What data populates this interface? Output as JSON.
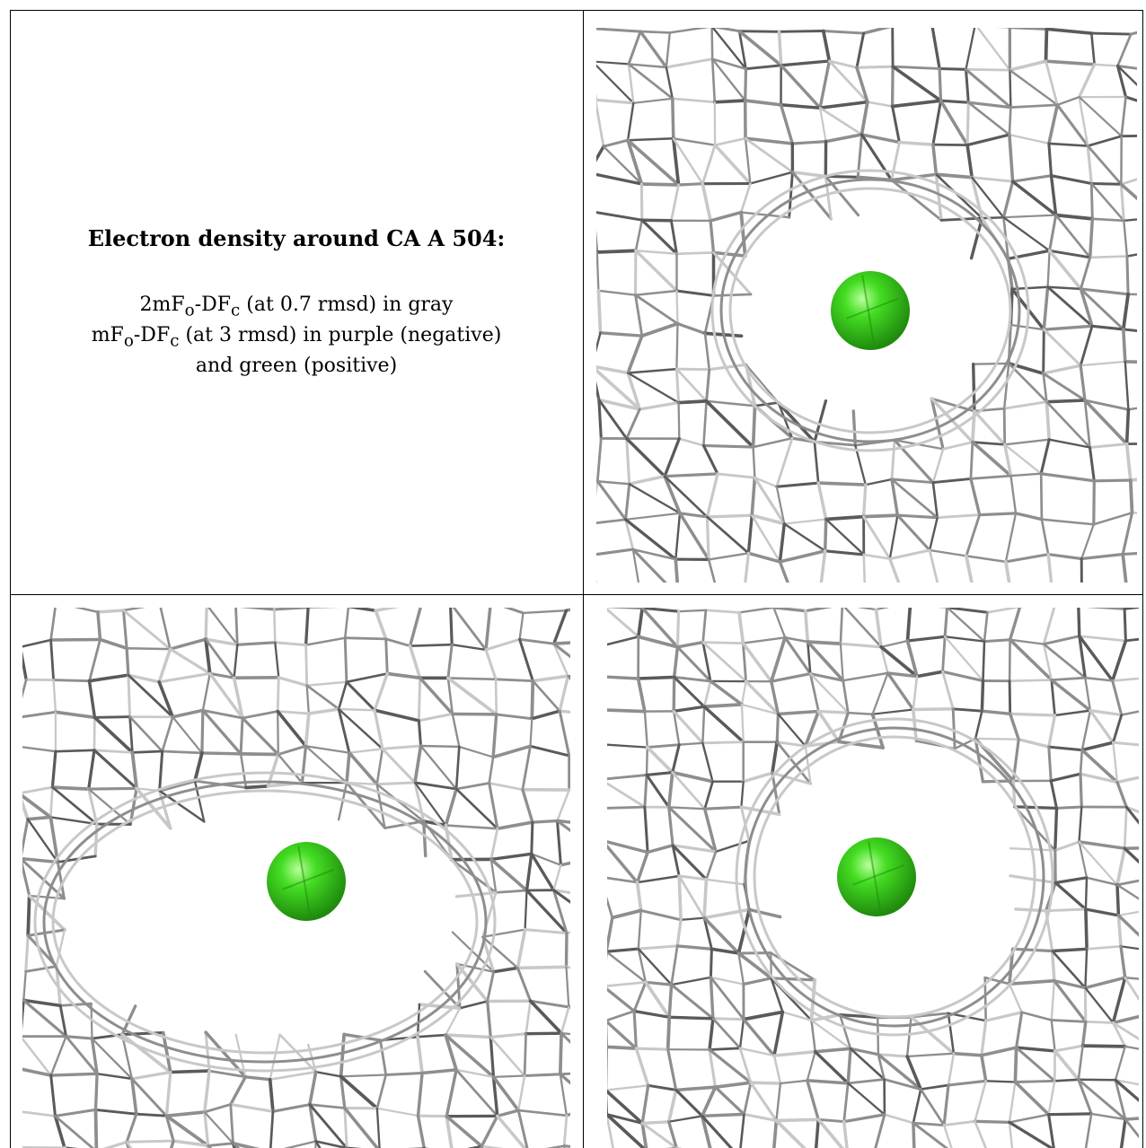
{
  "caption": {
    "title": "Electron density around CA A 504:",
    "line1_a": "2mF",
    "line1_sub1": "o",
    "line1_b": "-DF",
    "line1_sub2": "c",
    "line1_c": " (at 0.7 rmsd) in gray",
    "line2_a": "mF",
    "line2_sub1": "o",
    "line2_b": "-DF",
    "line2_sub2": "c",
    "line2_c": " (at 3 rmsd) in purple (negative)",
    "line3": "and green (positive)"
  },
  "colors": {
    "mesh_dark": "#5a5a5a",
    "mesh_mid": "#8e8e8e",
    "mesh_light": "#c8c8c8",
    "sphere": "#44dd22",
    "sphere_highlight": "#b8ff9a",
    "sphere_shadow": "#1f8a0d"
  },
  "panels": [
    {
      "id": "top-right",
      "seed": 3
    },
    {
      "id": "bottom-left",
      "seed": 11
    },
    {
      "id": "bottom-right",
      "seed": 23
    }
  ]
}
